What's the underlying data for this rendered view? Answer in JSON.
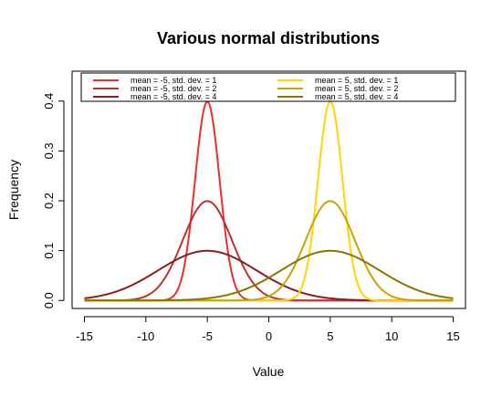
{
  "chart_data": {
    "type": "line",
    "title": "Various normal distributions",
    "xlabel": "Value",
    "ylabel": "Frequency",
    "xlim": [
      -16,
      16
    ],
    "ylim": [
      -0.016,
      0.46
    ],
    "x_ticks": [
      -15,
      -10,
      -5,
      0,
      5,
      10,
      15
    ],
    "x_tick_labels": [
      "-15",
      "-10",
      "-5",
      "0",
      "5",
      "10",
      "15"
    ],
    "y_ticks": [
      0.0,
      0.1,
      0.2,
      0.3,
      0.4
    ],
    "y_tick_labels": [
      "0.0",
      "0.1",
      "0.2",
      "0.3",
      "0.4"
    ],
    "grid": false,
    "legend_position": "top",
    "series": [
      {
        "name": "mean = -5, std. dev. = 1",
        "mean": -5,
        "sd": 1,
        "color": "#e8302f",
        "x": [
          -15,
          -9,
          -8,
          -7,
          -6,
          -5.5,
          -5,
          -4.5,
          -4,
          -3,
          -2,
          -1,
          0,
          15
        ],
        "values": [
          0.0,
          0.0001,
          0.0044,
          0.054,
          0.242,
          0.352,
          0.399,
          0.352,
          0.242,
          0.054,
          0.0044,
          0.0001,
          0.0,
          0.0
        ]
      },
      {
        "name": "mean = -5, std. dev. = 2",
        "mean": -5,
        "sd": 2,
        "color": "#c0302c",
        "x": [
          -15,
          -11,
          -9,
          -7,
          -6,
          -5,
          -4,
          -3,
          -1,
          1,
          3,
          15
        ],
        "values": [
          0.0,
          0.0022,
          0.027,
          0.121,
          0.176,
          0.199,
          0.176,
          0.121,
          0.027,
          0.0022,
          0.0001,
          0.0
        ]
      },
      {
        "name": "mean = -5, std. dev. = 4",
        "mean": -5,
        "sd": 4,
        "color": "#8b1e1e",
        "x": [
          -15,
          -13,
          -11,
          -9,
          -7,
          -5,
          -3,
          -1,
          1,
          3,
          5,
          15
        ],
        "values": [
          0.0044,
          0.0135,
          0.0324,
          0.0605,
          0.088,
          0.0997,
          0.088,
          0.0605,
          0.0324,
          0.0135,
          0.0044,
          0.0
        ]
      },
      {
        "name": "mean = 5, std. dev. = 1",
        "mean": 5,
        "sd": 1,
        "color": "#ffd400",
        "x": [
          -15,
          0,
          1,
          2,
          3,
          4,
          4.5,
          5,
          5.5,
          6,
          7,
          8,
          9,
          15
        ],
        "values": [
          0.0,
          0.0,
          0.0001,
          0.0044,
          0.054,
          0.242,
          0.352,
          0.399,
          0.352,
          0.242,
          0.054,
          0.0044,
          0.0001,
          0.0
        ]
      },
      {
        "name": "mean = 5, std. dev. = 2",
        "mean": 5,
        "sd": 2,
        "color": "#c8a400",
        "x": [
          -15,
          -3,
          -1,
          1,
          3,
          4,
          5,
          6,
          7,
          9,
          11,
          15
        ],
        "values": [
          0.0,
          0.0001,
          0.0022,
          0.027,
          0.121,
          0.176,
          0.199,
          0.176,
          0.121,
          0.027,
          0.0022,
          0.0
        ]
      },
      {
        "name": "mean = 5, std. dev. = 4",
        "mean": 5,
        "sd": 4,
        "color": "#8b7500",
        "x": [
          -15,
          -5,
          -3,
          -1,
          1,
          3,
          5,
          7,
          9,
          11,
          13,
          15
        ],
        "values": [
          0.0,
          0.0044,
          0.0135,
          0.0324,
          0.0605,
          0.088,
          0.0997,
          0.088,
          0.0605,
          0.0324,
          0.0135,
          0.0044
        ]
      }
    ]
  }
}
